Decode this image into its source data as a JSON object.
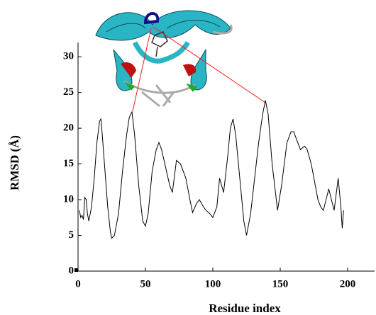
{
  "chart_data": {
    "type": "line",
    "xlabel": "Residue index",
    "ylabel": "RMSD (Å)",
    "x": [
      1,
      2,
      3,
      4,
      5,
      6,
      7,
      8,
      10,
      12,
      14,
      16,
      17,
      18,
      20,
      22,
      24,
      25,
      27,
      30,
      33,
      36,
      38,
      40,
      42,
      45,
      48,
      50,
      52,
      55,
      58,
      60,
      62,
      65,
      68,
      70,
      73,
      76,
      80,
      83,
      85,
      88,
      90,
      93,
      95,
      98,
      100,
      103,
      105,
      108,
      111,
      113,
      115,
      117,
      120,
      123,
      125,
      128,
      131,
      134,
      137,
      139,
      141,
      144,
      148,
      151,
      155,
      158,
      160,
      163,
      165,
      168,
      170,
      173,
      175,
      178,
      180,
      182,
      184,
      186,
      188,
      190,
      193,
      195,
      196,
      197
    ],
    "values": [
      8.5,
      7.5,
      7.8,
      7.2,
      10.3,
      10,
      8,
      7,
      9,
      13,
      18,
      21,
      21.3,
      19,
      14,
      9,
      5.5,
      4.6,
      5,
      8,
      14,
      19,
      21.5,
      22.3,
      19,
      12,
      7,
      6.3,
      8,
      14,
      17,
      18,
      17,
      14.5,
      12,
      11,
      15.5,
      15,
      13,
      10,
      8.2,
      9.5,
      10,
      9,
      8.5,
      8,
      7.5,
      9,
      13,
      11,
      16,
      20,
      21.3,
      19,
      13,
      7,
      5,
      8,
      13,
      18,
      22,
      23.9,
      22,
      15,
      8.5,
      12,
      18,
      19.5,
      19.5,
      18,
      17,
      17.5,
      17,
      15,
      13,
      10,
      9,
      8.5,
      10,
      11.5,
      10,
      8.5,
      13,
      9,
      6,
      8.5
    ],
    "color": "#000000",
    "xlim": [
      0,
      220
    ],
    "xticks": [
      0,
      50,
      100,
      150,
      200
    ],
    "ylim": [
      0,
      32
    ],
    "yticks": [
      0,
      5,
      10,
      15,
      20,
      25,
      30
    ]
  }
}
